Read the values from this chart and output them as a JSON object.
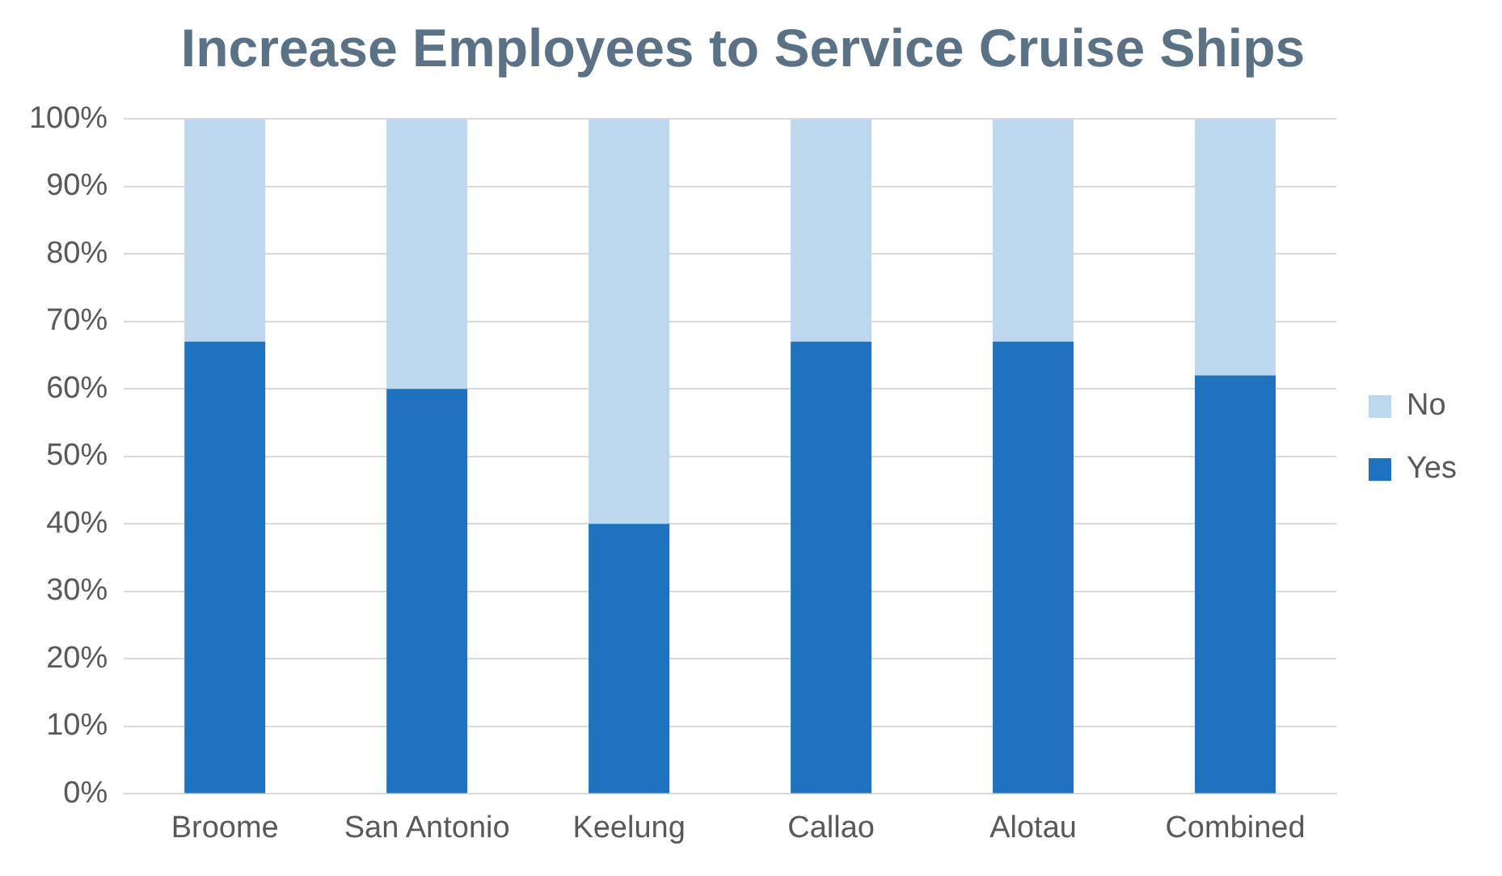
{
  "chart_data": {
    "type": "bar",
    "title": "Increase Employees to Service Cruise Ships",
    "categories": [
      "Broome",
      "San Antonio",
      "Keelung",
      "Callao",
      "Alotau",
      "Combined"
    ],
    "stacked": true,
    "series": [
      {
        "name": "Yes",
        "color": "#1f73be",
        "values": [
          67,
          60,
          40,
          67,
          67,
          62
        ]
      },
      {
        "name": "No",
        "color": "#bdd7ee",
        "values": [
          33,
          40,
          60,
          33,
          33,
          38
        ]
      }
    ],
    "ylim": [
      0,
      100
    ],
    "yticks": [
      {
        "value": 0,
        "label": "0%"
      },
      {
        "value": 10,
        "label": "10%"
      },
      {
        "value": 20,
        "label": "20%"
      },
      {
        "value": 30,
        "label": "30%"
      },
      {
        "value": 40,
        "label": "40%"
      },
      {
        "value": 50,
        "label": "50%"
      },
      {
        "value": 60,
        "label": "60%"
      },
      {
        "value": 70,
        "label": "70%"
      },
      {
        "value": 80,
        "label": "80%"
      },
      {
        "value": 90,
        "label": "90%"
      },
      {
        "value": 100,
        "label": "100%"
      }
    ],
    "grid": "y",
    "legend": "right"
  }
}
